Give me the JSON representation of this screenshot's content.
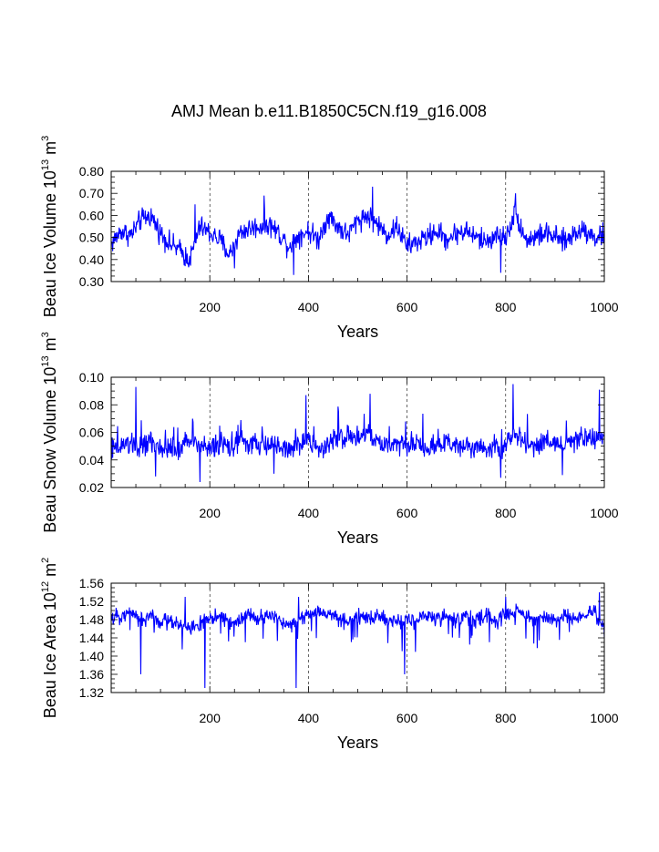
{
  "title": "AMJ Mean b.e11.B1850C5CN.f19_g16.008",
  "chart_data": [
    {
      "type": "line",
      "title": "",
      "xlabel": "Years",
      "ylabel": "Beau Ice Volume 10",
      "ylabel_exp": "13",
      "ylabel_unit": " m",
      "ylabel_unit_exp": "3",
      "xlim": [
        0,
        1000
      ],
      "ylim": [
        0.3,
        0.8
      ],
      "xticks": [
        200,
        400,
        600,
        800,
        1000
      ],
      "xtick_labels": [
        "200",
        "400",
        "600",
        "800",
        "1000"
      ],
      "yticks": [
        0.3,
        0.4,
        0.5,
        0.6,
        0.7,
        0.8
      ],
      "ytick_labels": [
        "0.30",
        "0.40",
        "0.50",
        "0.60",
        "0.70",
        "0.80"
      ],
      "grid_x": [
        200,
        400,
        600,
        800
      ],
      "color": "#0000ff",
      "series": [
        {
          "name": "Beau Ice Volume",
          "x": [
            0,
            20,
            40,
            60,
            80,
            100,
            120,
            140,
            160,
            180,
            200,
            220,
            240,
            260,
            280,
            300,
            320,
            340,
            360,
            380,
            400,
            420,
            440,
            460,
            480,
            500,
            520,
            540,
            560,
            580,
            600,
            620,
            640,
            660,
            680,
            700,
            720,
            740,
            760,
            780,
            800,
            820,
            840,
            860,
            880,
            900,
            920,
            940,
            960,
            980,
            1000
          ],
          "y": [
            0.47,
            0.53,
            0.51,
            0.58,
            0.6,
            0.52,
            0.47,
            0.44,
            0.4,
            0.55,
            0.52,
            0.49,
            0.42,
            0.52,
            0.54,
            0.55,
            0.56,
            0.52,
            0.46,
            0.51,
            0.53,
            0.49,
            0.6,
            0.55,
            0.51,
            0.58,
            0.6,
            0.56,
            0.51,
            0.55,
            0.46,
            0.48,
            0.5,
            0.53,
            0.49,
            0.52,
            0.53,
            0.5,
            0.48,
            0.51,
            0.5,
            0.62,
            0.49,
            0.5,
            0.52,
            0.5,
            0.48,
            0.52,
            0.54,
            0.5,
            0.51
          ],
          "min_points": [
            [
              150,
              0.37
            ],
            [
              250,
              0.36
            ],
            [
              370,
              0.33
            ],
            [
              790,
              0.34
            ]
          ],
          "max_points": [
            [
              170,
              0.65
            ],
            [
              310,
              0.69
            ],
            [
              530,
              0.73
            ],
            [
              820,
              0.7
            ]
          ]
        }
      ]
    },
    {
      "type": "line",
      "title": "",
      "xlabel": "Years",
      "ylabel": "Beau Snow Volume 10",
      "ylabel_exp": "13",
      "ylabel_unit": " m",
      "ylabel_unit_exp": "3",
      "xlim": [
        0,
        1000
      ],
      "ylim": [
        0.02,
        0.1
      ],
      "xticks": [
        200,
        400,
        600,
        800,
        1000
      ],
      "xtick_labels": [
        "200",
        "400",
        "600",
        "800",
        "1000"
      ],
      "yticks": [
        0.02,
        0.04,
        0.06,
        0.08,
        0.1
      ],
      "ytick_labels": [
        "0.02",
        "0.04",
        "0.06",
        "0.08",
        "0.10"
      ],
      "grid_x": [
        200,
        400,
        600,
        800
      ],
      "color": "#0000ff",
      "series": [
        {
          "name": "Beau Snow Volume",
          "x": [
            0,
            20,
            40,
            60,
            80,
            100,
            120,
            140,
            160,
            180,
            200,
            220,
            240,
            260,
            280,
            300,
            320,
            340,
            360,
            380,
            400,
            420,
            440,
            460,
            480,
            500,
            520,
            540,
            560,
            580,
            600,
            620,
            640,
            660,
            680,
            700,
            720,
            740,
            760,
            780,
            800,
            820,
            840,
            860,
            880,
            900,
            920,
            940,
            960,
            980,
            1000
          ],
          "y": [
            0.045,
            0.05,
            0.052,
            0.048,
            0.055,
            0.046,
            0.05,
            0.047,
            0.055,
            0.05,
            0.048,
            0.052,
            0.05,
            0.055,
            0.05,
            0.052,
            0.049,
            0.05,
            0.047,
            0.052,
            0.055,
            0.048,
            0.05,
            0.058,
            0.056,
            0.055,
            0.06,
            0.052,
            0.05,
            0.055,
            0.05,
            0.052,
            0.048,
            0.05,
            0.053,
            0.05,
            0.052,
            0.05,
            0.049,
            0.05,
            0.048,
            0.06,
            0.052,
            0.05,
            0.055,
            0.052,
            0.05,
            0.055,
            0.058,
            0.055,
            0.056
          ],
          "min_points": [
            [
              90,
              0.028
            ],
            [
              180,
              0.024
            ],
            [
              330,
              0.03
            ],
            [
              790,
              0.027
            ],
            [
              915,
              0.029
            ]
          ],
          "max_points": [
            [
              50,
              0.093
            ],
            [
              395,
              0.087
            ],
            [
              525,
              0.088
            ],
            [
              815,
              0.095
            ],
            [
              990,
              0.091
            ]
          ]
        }
      ]
    },
    {
      "type": "line",
      "title": "",
      "xlabel": "Years",
      "ylabel": "Beau Ice Area 10",
      "ylabel_exp": "12",
      "ylabel_unit": " m",
      "ylabel_unit_exp": "2",
      "xlim": [
        0,
        1000
      ],
      "ylim": [
        1.32,
        1.56
      ],
      "xticks": [
        200,
        400,
        600,
        800,
        1000
      ],
      "xtick_labels": [
        "200",
        "400",
        "600",
        "800",
        "1000"
      ],
      "yticks": [
        1.32,
        1.36,
        1.4,
        1.44,
        1.48,
        1.52,
        1.56
      ],
      "ytick_labels": [
        "1.32",
        "1.36",
        "1.40",
        "1.44",
        "1.48",
        "1.52",
        "1.56"
      ],
      "grid_x": [
        200,
        400,
        600,
        800
      ],
      "color": "#0000ff",
      "series": [
        {
          "name": "Beau Ice Area",
          "x": [
            0,
            20,
            40,
            60,
            80,
            100,
            120,
            140,
            160,
            180,
            200,
            220,
            240,
            260,
            280,
            300,
            320,
            340,
            360,
            380,
            400,
            420,
            440,
            460,
            480,
            500,
            520,
            540,
            560,
            580,
            600,
            620,
            640,
            660,
            680,
            700,
            720,
            740,
            760,
            780,
            800,
            820,
            840,
            860,
            880,
            900,
            920,
            940,
            960,
            980,
            1000
          ],
          "y": [
            1.48,
            1.49,
            1.5,
            1.48,
            1.49,
            1.47,
            1.48,
            1.47,
            1.46,
            1.47,
            1.48,
            1.49,
            1.47,
            1.48,
            1.49,
            1.48,
            1.49,
            1.48,
            1.47,
            1.48,
            1.49,
            1.5,
            1.49,
            1.48,
            1.48,
            1.49,
            1.48,
            1.49,
            1.48,
            1.47,
            1.48,
            1.48,
            1.49,
            1.48,
            1.49,
            1.48,
            1.49,
            1.48,
            1.49,
            1.48,
            1.49,
            1.5,
            1.49,
            1.48,
            1.49,
            1.48,
            1.49,
            1.48,
            1.49,
            1.5,
            1.46
          ],
          "min_points": [
            [
              60,
              1.36
            ],
            [
              190,
              1.33
            ],
            [
              375,
              1.33
            ],
            [
              595,
              1.36
            ]
          ],
          "max_points": [
            [
              150,
              1.53
            ],
            [
              380,
              1.53
            ],
            [
              800,
              1.53
            ],
            [
              990,
              1.54
            ]
          ]
        }
      ]
    }
  ]
}
